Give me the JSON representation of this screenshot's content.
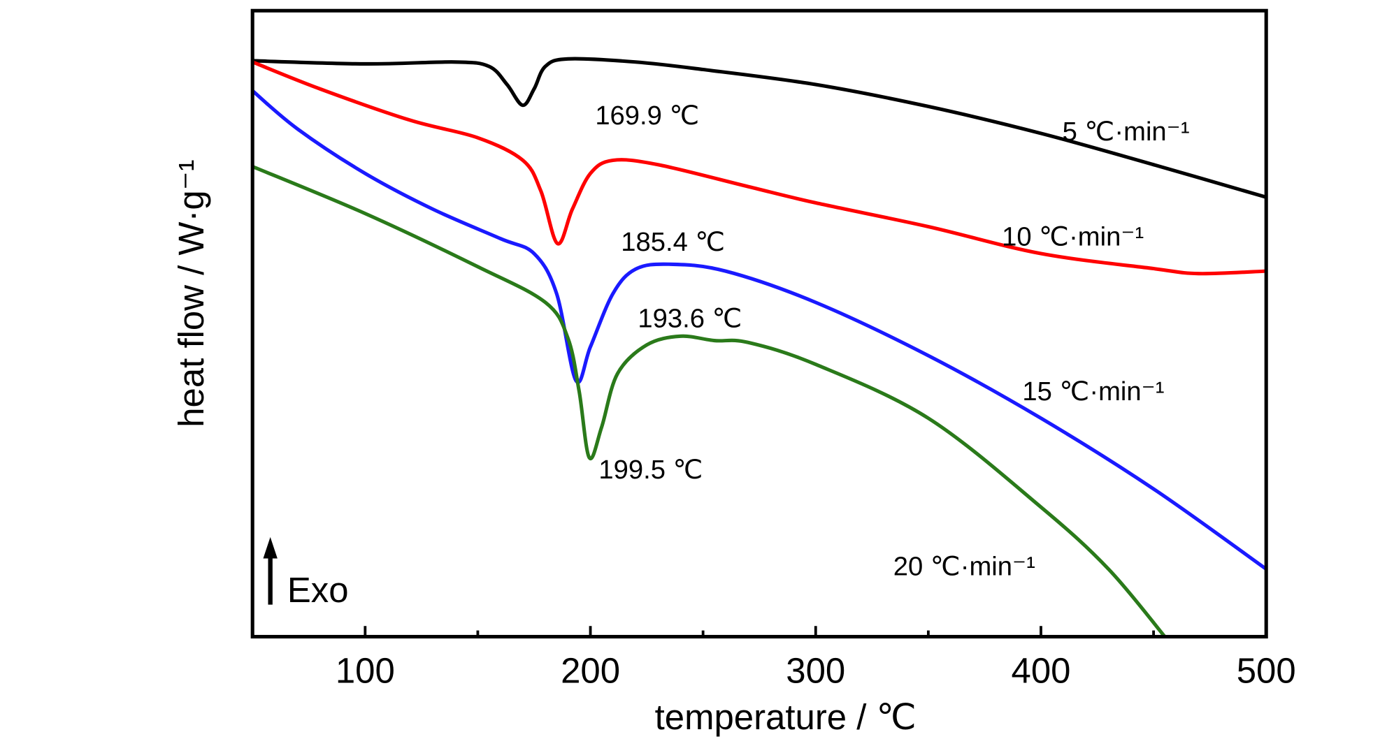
{
  "chart_data": {
    "type": "line",
    "xlabel": "temperature / ℃",
    "ylabel": "heat flow / W·g⁻¹",
    "xlim": [
      50,
      500
    ],
    "ylim": [
      0,
      100
    ],
    "xticks": [
      100,
      200,
      300,
      400,
      500
    ],
    "xminorticks": [
      150,
      250,
      350,
      450
    ],
    "series": [
      {
        "name": "5 ℃·min⁻¹",
        "color": "#000000",
        "x": [
          50,
          100,
          140,
          155,
          163,
          169.9,
          175,
          180,
          190,
          220,
          250,
          300,
          350,
          400,
          450,
          500
        ],
        "values": [
          92.0,
          91.5,
          91.8,
          91.1,
          88.2,
          84.9,
          87.5,
          91.1,
          92.3,
          91.8,
          90.6,
          88.2,
          84.7,
          80.4,
          75.4,
          70.2
        ]
      },
      {
        "name": "10 ℃·min⁻¹",
        "color": "#ff0000",
        "x": [
          50,
          80,
          120,
          150,
          170,
          178,
          185.4,
          192,
          200,
          210,
          230,
          270,
          300,
          350,
          400,
          450,
          470,
          500
        ],
        "values": [
          91.8,
          87.5,
          82.5,
          79.7,
          76.1,
          71.2,
          62.8,
          68.3,
          74.0,
          76.1,
          75.4,
          71.9,
          69.3,
          65.5,
          61.2,
          58.8,
          58.0,
          58.4
        ]
      },
      {
        "name": "15 ℃·min⁻¹",
        "color": "#1a1aff",
        "x": [
          50,
          70,
          100,
          130,
          160,
          175,
          185,
          193.6,
          200,
          210,
          220,
          235,
          260,
          300,
          350,
          400,
          450,
          500
        ],
        "values": [
          87.2,
          81.1,
          74.0,
          68.3,
          63.6,
          61.2,
          54.8,
          40.9,
          46.3,
          54.8,
          58.7,
          59.5,
          58.4,
          53.4,
          44.9,
          34.9,
          23.6,
          10.8
        ]
      },
      {
        "name": "20 ℃·min⁻¹",
        "color": "#2a7a1a",
        "x": [
          50,
          100,
          150,
          180,
          190,
          195,
          199.5,
          205,
          212,
          225,
          240,
          255,
          270,
          300,
          350,
          400,
          430,
          455
        ],
        "values": [
          75.1,
          67.6,
          59.1,
          53.4,
          47.7,
          39.2,
          28.6,
          33.5,
          42.0,
          46.6,
          48.0,
          47.3,
          47.0,
          43.5,
          34.9,
          20.7,
          10.8,
          0
        ]
      }
    ],
    "annotations": [
      "169.9 ℃",
      "185.4 ℃",
      "193.6 ℃",
      "199.5 ℃",
      "Exo"
    ]
  }
}
